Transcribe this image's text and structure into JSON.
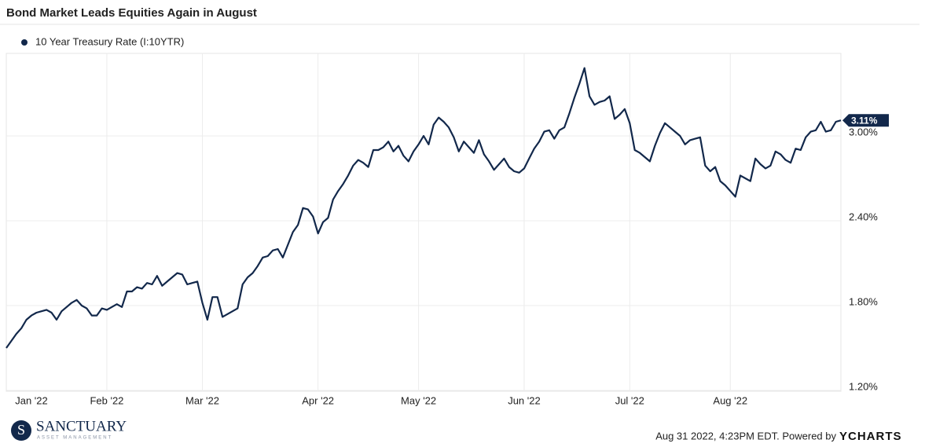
{
  "chart_data": {
    "type": "line",
    "title": "Bond Market Leads Equities Again in August",
    "categories": [
      "Jan '22",
      null,
      null,
      null,
      null,
      null,
      null,
      null,
      null,
      null,
      null,
      null,
      null,
      null,
      null,
      null,
      null,
      null,
      null,
      null,
      "Feb '22",
      null,
      null,
      null,
      null,
      null,
      null,
      null,
      null,
      null,
      null,
      null,
      null,
      null,
      null,
      null,
      null,
      null,
      null,
      "Mar '22",
      null,
      null,
      null,
      null,
      null,
      null,
      null,
      null,
      null,
      null,
      null,
      null,
      null,
      null,
      null,
      null,
      null,
      null,
      null,
      null,
      null,
      null,
      "Apr '22",
      null,
      null,
      null,
      null,
      null,
      null,
      null,
      null,
      null,
      null,
      null,
      null,
      null,
      null,
      null,
      null,
      null,
      null,
      null,
      "May '22",
      null,
      null,
      null,
      null,
      null,
      null,
      null,
      null,
      null,
      null,
      null,
      null,
      null,
      null,
      null,
      null,
      null,
      null,
      null,
      null,
      "Jun '22",
      null,
      null,
      null,
      null,
      null,
      null,
      null,
      null,
      null,
      null,
      null,
      null,
      null,
      null,
      null,
      null,
      null,
      null,
      null,
      null,
      "Jul '22",
      null,
      null,
      null,
      null,
      null,
      null,
      null,
      null,
      null,
      null,
      null,
      null,
      null,
      null,
      null,
      null,
      null,
      null,
      null,
      "Aug '22",
      null,
      null,
      null,
      null,
      null,
      null,
      null,
      null,
      null,
      null,
      null,
      null,
      null,
      null,
      null,
      null,
      null,
      null,
      null,
      null,
      null,
      null
    ],
    "series": [
      {
        "name": "10 Year Treasury Rate (I:10YTR)",
        "color": "#12284b",
        "values": [
          1.5,
          1.55,
          1.6,
          1.64,
          1.7,
          1.73,
          1.75,
          1.76,
          1.77,
          1.75,
          1.7,
          1.76,
          1.79,
          1.82,
          1.84,
          1.8,
          1.78,
          1.73,
          1.73,
          1.78,
          1.77,
          1.79,
          1.81,
          1.79,
          1.9,
          1.9,
          1.93,
          1.92,
          1.96,
          1.95,
          2.01,
          1.94,
          1.97,
          2.0,
          2.03,
          2.02,
          1.95,
          1.96,
          1.97,
          1.82,
          1.7,
          1.86,
          1.86,
          1.72,
          1.74,
          1.76,
          1.78,
          1.95,
          2.0,
          2.03,
          2.08,
          2.14,
          2.15,
          2.19,
          2.2,
          2.14,
          2.23,
          2.32,
          2.37,
          2.49,
          2.48,
          2.43,
          2.31,
          2.39,
          2.42,
          2.55,
          2.61,
          2.66,
          2.72,
          2.79,
          2.83,
          2.81,
          2.78,
          2.9,
          2.9,
          2.92,
          2.96,
          2.89,
          2.93,
          2.86,
          2.82,
          2.89,
          2.94,
          3.0,
          2.94,
          3.08,
          3.13,
          3.1,
          3.06,
          2.99,
          2.89,
          2.96,
          2.92,
          2.88,
          2.97,
          2.87,
          2.82,
          2.76,
          2.8,
          2.84,
          2.78,
          2.75,
          2.74,
          2.77,
          2.84,
          2.91,
          2.96,
          3.03,
          3.04,
          2.98,
          3.04,
          3.06,
          3.16,
          3.27,
          3.37,
          3.48,
          3.28,
          3.22,
          3.24,
          3.25,
          3.28,
          3.12,
          3.15,
          3.19,
          3.09,
          2.9,
          2.88,
          2.85,
          2.82,
          2.93,
          3.02,
          3.09,
          3.06,
          3.03,
          3.0,
          2.94,
          2.97,
          2.98,
          2.99,
          2.79,
          2.75,
          2.78,
          2.68,
          2.65,
          2.61,
          2.57,
          2.72,
          2.7,
          2.68,
          2.84,
          2.8,
          2.77,
          2.79,
          2.89,
          2.87,
          2.83,
          2.81,
          2.91,
          2.9,
          2.99,
          3.03,
          3.04,
          3.1,
          3.03,
          3.04,
          3.1,
          3.11
        ]
      }
    ],
    "end_label": {
      "value": 3.11,
      "label": "3.11%"
    },
    "ylim": [
      1.2,
      3.6
    ],
    "yticks": [
      {
        "value": 1.2,
        "label": "1.20%"
      },
      {
        "value": 1.8,
        "label": "1.80%"
      },
      {
        "value": 2.4,
        "label": "2.40%"
      },
      {
        "value": 3.0,
        "label": "3.00%"
      }
    ],
    "grid": true
  },
  "branding": {
    "logo_name": "SANCTUARY",
    "logo_sub": "ASSET MANAGEMENT",
    "timestamp": "Aug 31 2022, 4:23PM EDT. Powered by",
    "provider": "YCHARTS"
  }
}
